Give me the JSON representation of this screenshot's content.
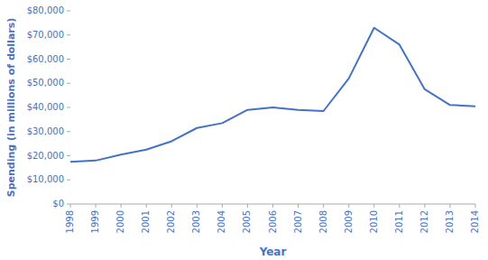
{
  "chart_data": {
    "type": "line",
    "x": [
      1998,
      1999,
      2000,
      2001,
      2002,
      2003,
      2004,
      2005,
      2006,
      2007,
      2008,
      2009,
      2010,
      2011,
      2012,
      2013,
      2014
    ],
    "values": [
      17500,
      18000,
      20500,
      22500,
      26000,
      31500,
      33500,
      39000,
      40000,
      39000,
      38500,
      52000,
      73000,
      66000,
      47500,
      41000,
      40500
    ],
    "color": "#4472C4",
    "xlabel": "Year",
    "ylabel": "Spending (in millions of dollars)",
    "xlim": [
      1998,
      2014
    ],
    "xticks": [
      1998,
      1999,
      2000,
      2001,
      2002,
      2003,
      2004,
      2005,
      2006,
      2007,
      2008,
      2009,
      2010,
      2011,
      2012,
      2013,
      2014
    ],
    "ylim": [
      0,
      80000
    ],
    "yticks": [
      {
        "value": 0,
        "label": "$0"
      },
      {
        "value": 10000,
        "label": "$10,000"
      },
      {
        "value": 20000,
        "label": "$20,000"
      },
      {
        "value": 30000,
        "label": "$30,000"
      },
      {
        "value": 40000,
        "label": "$40,000"
      },
      {
        "value": 50000,
        "label": "$50,000"
      },
      {
        "value": 60000,
        "label": "$60,000"
      },
      {
        "value": 70000,
        "label": "$70,000"
      },
      {
        "value": 80000,
        "label": "$80,000"
      }
    ],
    "grid": false
  }
}
